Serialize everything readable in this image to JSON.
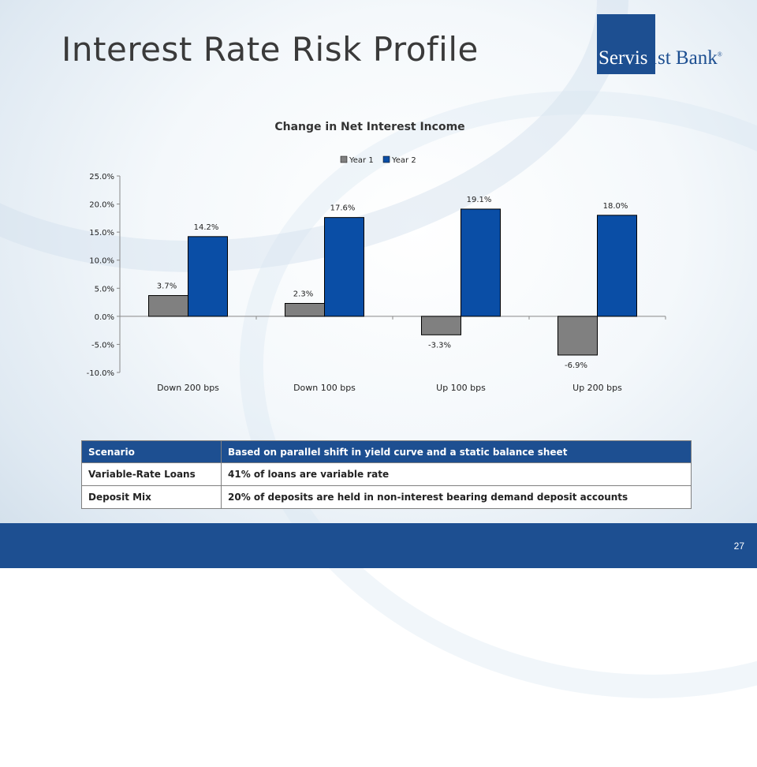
{
  "slide": {
    "title": "Interest Rate Risk Profile",
    "page_number": "27",
    "logo": {
      "part1": "Servis",
      "part2": "1st Bank",
      "mark": "®"
    }
  },
  "colors": {
    "brand_blue": "#1d4f91",
    "year1": "#808080",
    "year2": "#0a4ea6"
  },
  "chart_data": {
    "type": "bar",
    "title": "Change in Net Interest Income",
    "categories": [
      "Down 200 bps",
      "Down 100 bps",
      "Up 100 bps",
      "Up 200 bps"
    ],
    "series": [
      {
        "name": "Year 1",
        "values": [
          3.7,
          2.3,
          -3.3,
          -6.9
        ],
        "labels": [
          "3.7%",
          "2.3%",
          "-3.3%",
          "-6.9%"
        ]
      },
      {
        "name": "Year 2",
        "values": [
          14.2,
          17.6,
          19.1,
          18.0
        ],
        "labels": [
          "14.2%",
          "17.6%",
          "19.1%",
          "18.0%"
        ]
      }
    ],
    "ylim": [
      -10,
      25
    ],
    "yticks": [
      "25.0%",
      "20.0%",
      "15.0%",
      "10.0%",
      "5.0%",
      "0.0%",
      "-5.0%",
      "-10.0%"
    ],
    "ytick_values": [
      25,
      20,
      15,
      10,
      5,
      0,
      -5,
      -10
    ],
    "legend": "top-center",
    "grid": false
  },
  "table": {
    "header": [
      "Scenario",
      "Based on parallel shift in yield curve and a static balance sheet"
    ],
    "rows": [
      [
        "Variable-Rate Loans",
        "41% of loans are variable rate"
      ],
      [
        "Deposit Mix",
        "20% of deposits are held in non-interest bearing demand deposit accounts"
      ]
    ]
  }
}
